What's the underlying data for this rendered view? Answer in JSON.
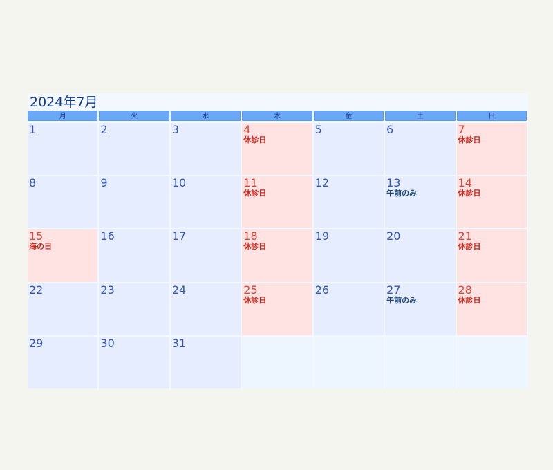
{
  "calendar": {
    "title": "2024年7月",
    "weekdays": [
      "月",
      "火",
      "水",
      "木",
      "金",
      "土",
      "日"
    ],
    "colors": {
      "closed_bg": "#ffe3e3",
      "open_bg": "#e5edff",
      "closed_text": "#d9463a",
      "header_bg": "#6aa8f5"
    },
    "days": [
      {
        "d": "1",
        "note": ""
      },
      {
        "d": "2",
        "note": ""
      },
      {
        "d": "3",
        "note": ""
      },
      {
        "d": "4",
        "note": "休診日"
      },
      {
        "d": "5",
        "note": ""
      },
      {
        "d": "6",
        "note": ""
      },
      {
        "d": "7",
        "note": "休診日"
      },
      {
        "d": "8",
        "note": ""
      },
      {
        "d": "9",
        "note": ""
      },
      {
        "d": "10",
        "note": ""
      },
      {
        "d": "11",
        "note": "休診日"
      },
      {
        "d": "12",
        "note": ""
      },
      {
        "d": "13",
        "note": "午前のみ"
      },
      {
        "d": "14",
        "note": "休診日"
      },
      {
        "d": "15",
        "note": "海の日"
      },
      {
        "d": "16",
        "note": ""
      },
      {
        "d": "17",
        "note": ""
      },
      {
        "d": "18",
        "note": "休診日"
      },
      {
        "d": "19",
        "note": ""
      },
      {
        "d": "20",
        "note": ""
      },
      {
        "d": "21",
        "note": "休診日"
      },
      {
        "d": "22",
        "note": ""
      },
      {
        "d": "23",
        "note": ""
      },
      {
        "d": "24",
        "note": ""
      },
      {
        "d": "25",
        "note": "休診日"
      },
      {
        "d": "26",
        "note": ""
      },
      {
        "d": "27",
        "note": "午前のみ"
      },
      {
        "d": "28",
        "note": "休診日"
      },
      {
        "d": "29",
        "note": ""
      },
      {
        "d": "30",
        "note": ""
      },
      {
        "d": "31",
        "note": ""
      },
      {
        "d": "",
        "note": ""
      },
      {
        "d": "",
        "note": ""
      },
      {
        "d": "",
        "note": ""
      },
      {
        "d": "",
        "note": ""
      }
    ]
  }
}
